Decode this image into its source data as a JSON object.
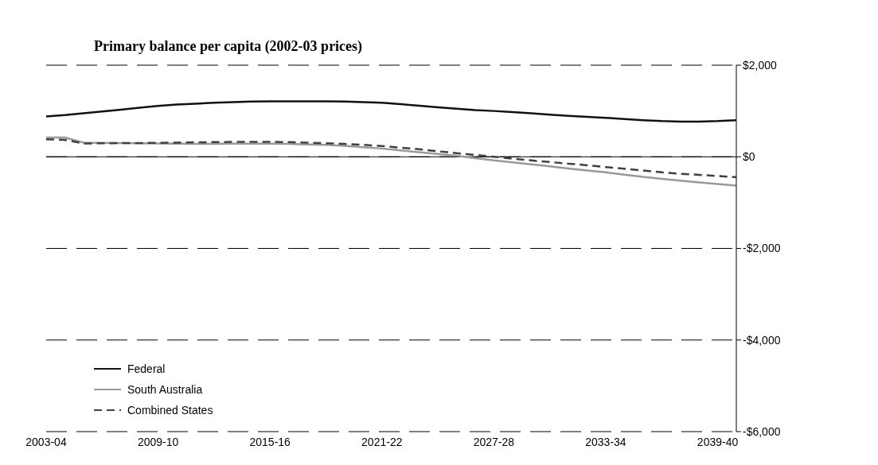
{
  "chart_data": {
    "type": "line",
    "title": "Primary balance per capita (2002-03 prices)",
    "categories": [
      "2003-04",
      null,
      null,
      null,
      null,
      null,
      "2009-10",
      null,
      null,
      null,
      null,
      null,
      "2015-16",
      null,
      null,
      null,
      null,
      null,
      "2021-22",
      null,
      null,
      null,
      null,
      null,
      "2027-28",
      null,
      null,
      null,
      null,
      null,
      "2033-34",
      null,
      null,
      null,
      null,
      null,
      "2039-40",
      null
    ],
    "series": [
      {
        "name": "Federal",
        "color": "#111111",
        "line_style": "solid",
        "values": [
          880,
          910,
          950,
          990,
          1030,
          1070,
          1110,
          1140,
          1160,
          1180,
          1195,
          1205,
          1210,
          1212,
          1212,
          1212,
          1205,
          1195,
          1180,
          1150,
          1115,
          1080,
          1050,
          1020,
          1000,
          975,
          950,
          920,
          895,
          870,
          850,
          825,
          800,
          780,
          770,
          770,
          780,
          800
        ]
      },
      {
        "name": "South Australia",
        "color": "#999999",
        "line_style": "solid",
        "values": [
          420,
          420,
          310,
          305,
          300,
          295,
          290,
          285,
          280,
          280,
          285,
          285,
          285,
          280,
          270,
          260,
          240,
          210,
          180,
          140,
          100,
          60,
          20,
          -30,
          -80,
          -120,
          -165,
          -210,
          -255,
          -300,
          -340,
          -390,
          -440,
          -480,
          -520,
          -560,
          -595,
          -630
        ]
      },
      {
        "name": "Combined States",
        "color": "#404040",
        "line_style": "dashed",
        "values": [
          380,
          370,
          290,
          295,
          300,
          300,
          305,
          310,
          315,
          320,
          325,
          325,
          325,
          320,
          310,
          295,
          280,
          260,
          235,
          200,
          165,
          120,
          80,
          40,
          0,
          -40,
          -80,
          -115,
          -150,
          -185,
          -225,
          -260,
          -300,
          -340,
          -370,
          -395,
          -420,
          -445
        ]
      }
    ],
    "ylim": [
      -6000,
      2000
    ],
    "yticks": [
      {
        "value": -6000,
        "label": "-$6,000"
      },
      {
        "value": -4000,
        "label": "-$4,000"
      },
      {
        "value": -2000,
        "label": "-$2,000"
      },
      {
        "value": 0,
        "label": "$0"
      },
      {
        "value": 2000,
        "label": "$2,000"
      }
    ],
    "ref_lines": [
      {
        "axis": "y",
        "value": 0,
        "color": "#000000",
        "line_style": "solid"
      }
    ],
    "grid": "y",
    "legend": "bottom left",
    "marker": "none"
  }
}
